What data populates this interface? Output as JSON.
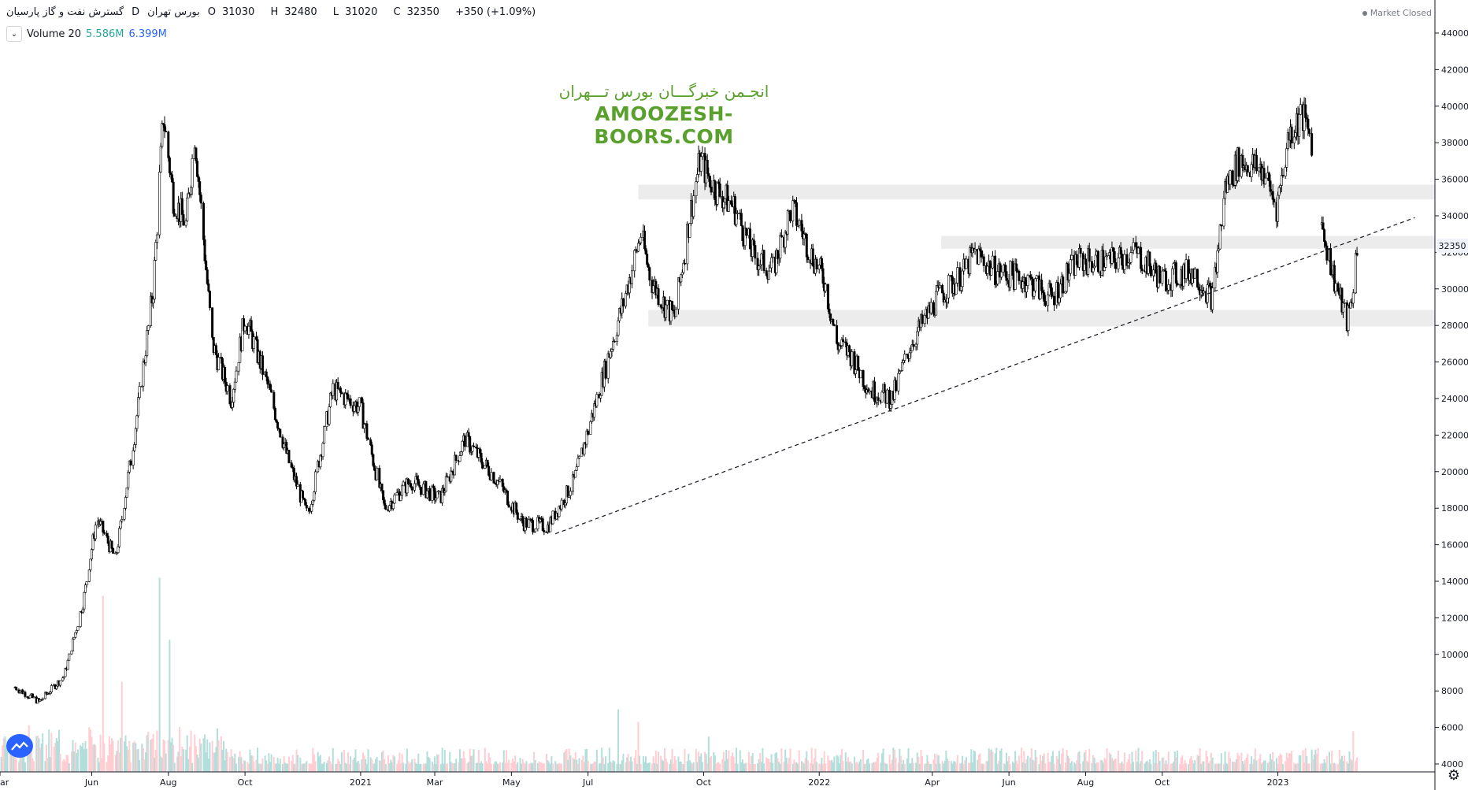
{
  "header": {
    "symbol_name": "گسترش نفت و گاز پارسیان",
    "interval": "D",
    "exchange": "بورس تهران",
    "ohlc": {
      "o_label": "O",
      "o": "31030",
      "h_label": "H",
      "h": "32480",
      "l_label": "L",
      "l": "31020",
      "c_label": "C",
      "c": "32350",
      "change": "+350 (+1.09%)"
    },
    "volume_label": "Volume 20",
    "volume_value_1": "5.586M",
    "volume_value_2": "6.399M",
    "market_status": "Market Closed"
  },
  "watermark": {
    "persian": "انجـمن خبرگـــان بورس تـــهران",
    "latin": "AMOOZESH-BOORS.COM"
  },
  "colors": {
    "up": "#26a69a",
    "down": "#ef5350",
    "vol_up": "#b2dfdb",
    "vol_down": "#ffcdd2",
    "zone": "#ececec",
    "candle": "#000000",
    "watermark": "#5aa02c"
  },
  "chart_data": {
    "type": "candlestick",
    "y_axis": {
      "min": 4000,
      "max": 44000,
      "ticks": [
        4000,
        6000,
        8000,
        10000,
        12000,
        14000,
        16000,
        18000,
        20000,
        22000,
        24000,
        26000,
        28000,
        30000,
        32000,
        34000,
        36000,
        38000,
        40000,
        42000,
        44000
      ]
    },
    "x_axis": {
      "ticks": [
        "ar",
        "Jun",
        "Aug",
        "Oct",
        "2021",
        "Mar",
        "May",
        "Jul",
        "Oct",
        "2022",
        "Apr",
        "Jun",
        "Aug",
        "Oct",
        "2023"
      ]
    },
    "last_price": "32350",
    "price_path": [
      [
        "2020-04-01",
        8200
      ],
      [
        "2020-04-20",
        7400
      ],
      [
        "2020-05-10",
        8800
      ],
      [
        "2020-05-25",
        12800
      ],
      [
        "2020-06-05",
        17500
      ],
      [
        "2020-06-20",
        15200
      ],
      [
        "2020-07-05",
        22000
      ],
      [
        "2020-07-20",
        30000
      ],
      [
        "2020-07-28",
        39500
      ],
      [
        "2020-08-05",
        35000
      ],
      [
        "2020-08-15",
        33500
      ],
      [
        "2020-08-22",
        38500
      ],
      [
        "2020-09-05",
        27000
      ],
      [
        "2020-09-20",
        24000
      ],
      [
        "2020-10-01",
        28500
      ],
      [
        "2020-10-20",
        24500
      ],
      [
        "2020-11-05",
        20500
      ],
      [
        "2020-11-20",
        17500
      ],
      [
        "2020-12-10",
        24500
      ],
      [
        "2021-01-01",
        23500
      ],
      [
        "2021-01-20",
        18000
      ],
      [
        "2021-02-10",
        19500
      ],
      [
        "2021-03-05",
        18500
      ],
      [
        "2021-03-25",
        21800
      ],
      [
        "2021-04-20",
        19500
      ],
      [
        "2021-05-10",
        17200
      ],
      [
        "2021-05-30",
        17000
      ],
      [
        "2021-06-20",
        19500
      ],
      [
        "2021-07-10",
        24500
      ],
      [
        "2021-07-30",
        29500
      ],
      [
        "2021-08-12",
        33000
      ],
      [
        "2021-08-20",
        30500
      ],
      [
        "2021-09-01",
        29000
      ],
      [
        "2021-09-08",
        28500
      ],
      [
        "2021-09-20",
        34000
      ],
      [
        "2021-09-28",
        37000
      ],
      [
        "2021-10-10",
        35500
      ],
      [
        "2021-10-25",
        34500
      ],
      [
        "2021-11-10",
        31800
      ],
      [
        "2021-11-25",
        31000
      ],
      [
        "2021-12-10",
        34500
      ],
      [
        "2021-12-25",
        32000
      ],
      [
        "2022-01-05",
        30500
      ],
      [
        "2022-01-15",
        27000
      ],
      [
        "2022-01-25",
        26500
      ],
      [
        "2022-02-10",
        24500
      ],
      [
        "2022-02-28",
        24000
      ],
      [
        "2022-03-15",
        27000
      ],
      [
        "2022-04-05",
        29500
      ],
      [
        "2022-04-25",
        30800
      ],
      [
        "2022-05-05",
        32000
      ],
      [
        "2022-05-20",
        31000
      ],
      [
        "2022-06-15",
        30500
      ],
      [
        "2022-07-05",
        29500
      ],
      [
        "2022-07-25",
        31500
      ],
      [
        "2022-08-20",
        31500
      ],
      [
        "2022-09-10",
        32000
      ],
      [
        "2022-10-01",
        30500
      ],
      [
        "2022-10-25",
        31000
      ],
      [
        "2022-11-10",
        29500
      ],
      [
        "2022-11-20",
        35500
      ],
      [
        "2022-12-01",
        37000
      ],
      [
        "2022-12-20",
        36500
      ],
      [
        "2022-12-31",
        34500
      ],
      [
        "2023-01-10",
        38500
      ],
      [
        "2023-01-20",
        39500
      ],
      [
        "2023-01-28",
        38200
      ]
    ],
    "price_path_2": [
      [
        "2023-02-05",
        33500
      ],
      [
        "2023-02-15",
        30500
      ],
      [
        "2023-02-25",
        28200
      ],
      [
        "2023-03-01",
        29500
      ],
      [
        "2023-03-05",
        32350
      ]
    ],
    "volume_spikes": [
      [
        "2020-07-25",
        14200
      ],
      [
        "2020-06-10",
        13200
      ],
      [
        "2020-08-02",
        10800
      ],
      [
        "2020-06-25",
        8500
      ],
      [
        "2021-07-25",
        7000
      ],
      [
        "2021-08-10",
        6300
      ],
      [
        "2021-10-05",
        5500
      ],
      [
        "2023-03-02",
        5800
      ]
    ],
    "zones": [
      {
        "from": 34900,
        "to": 35700,
        "start": "2021-08-10"
      },
      {
        "from": 32200,
        "to": 32900,
        "start": "2022-04-08"
      },
      {
        "from": 27950,
        "to": 28850,
        "start": "2021-08-18"
      }
    ],
    "trendline": {
      "from": [
        "2021-06-05",
        16600
      ],
      "to": [
        "2023-04-20",
        33900
      ]
    }
  }
}
